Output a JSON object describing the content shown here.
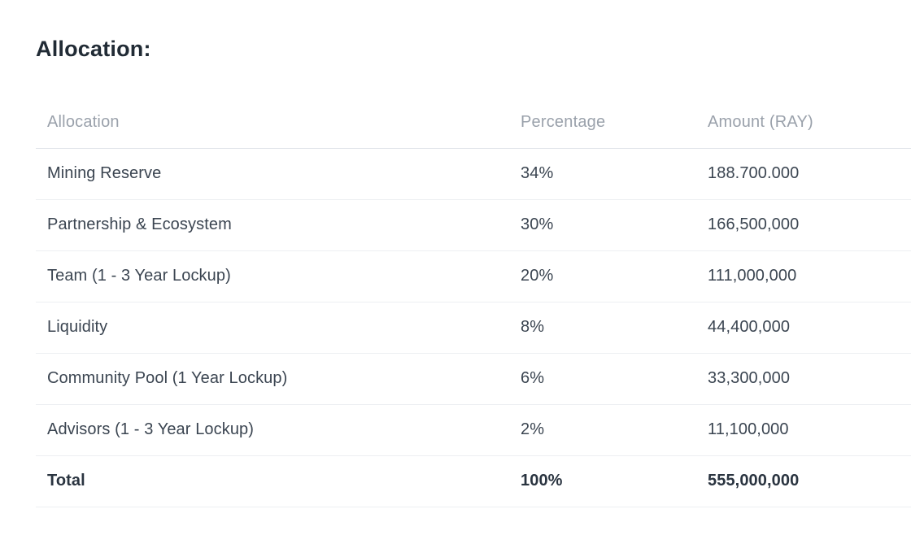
{
  "page": {
    "title": "Allocation:"
  },
  "table": {
    "columns": [
      "Allocation",
      "Percentage",
      "Amount (RAY)"
    ],
    "rows": [
      {
        "allocation": "Mining Reserve",
        "percentage": "34%",
        "amount": "188.700.000"
      },
      {
        "allocation": "Partnership & Ecosystem",
        "percentage": "30%",
        "amount": "166,500,000"
      },
      {
        "allocation": "Team (1 - 3 Year Lockup)",
        "percentage": "20%",
        "amount": "111,000,000"
      },
      {
        "allocation": "Liquidity",
        "percentage": "8%",
        "amount": "44,400,000"
      },
      {
        "allocation": "Community Pool (1 Year Lockup)",
        "percentage": "6%",
        "amount": "33,300,000"
      },
      {
        "allocation": "Advisors (1 - 3 Year Lockup)",
        "percentage": "2%",
        "amount": "11,100,000"
      }
    ],
    "total": {
      "allocation": "Total",
      "percentage": "100%",
      "amount": "555,000,000"
    }
  },
  "colors": {
    "title_text": "#212b35",
    "body_text": "#3b4551",
    "header_text": "#9aa1ab",
    "total_text": "#2a3440",
    "header_border": "#e0e4e9",
    "row_border": "#edeff2",
    "background": "#ffffff"
  }
}
